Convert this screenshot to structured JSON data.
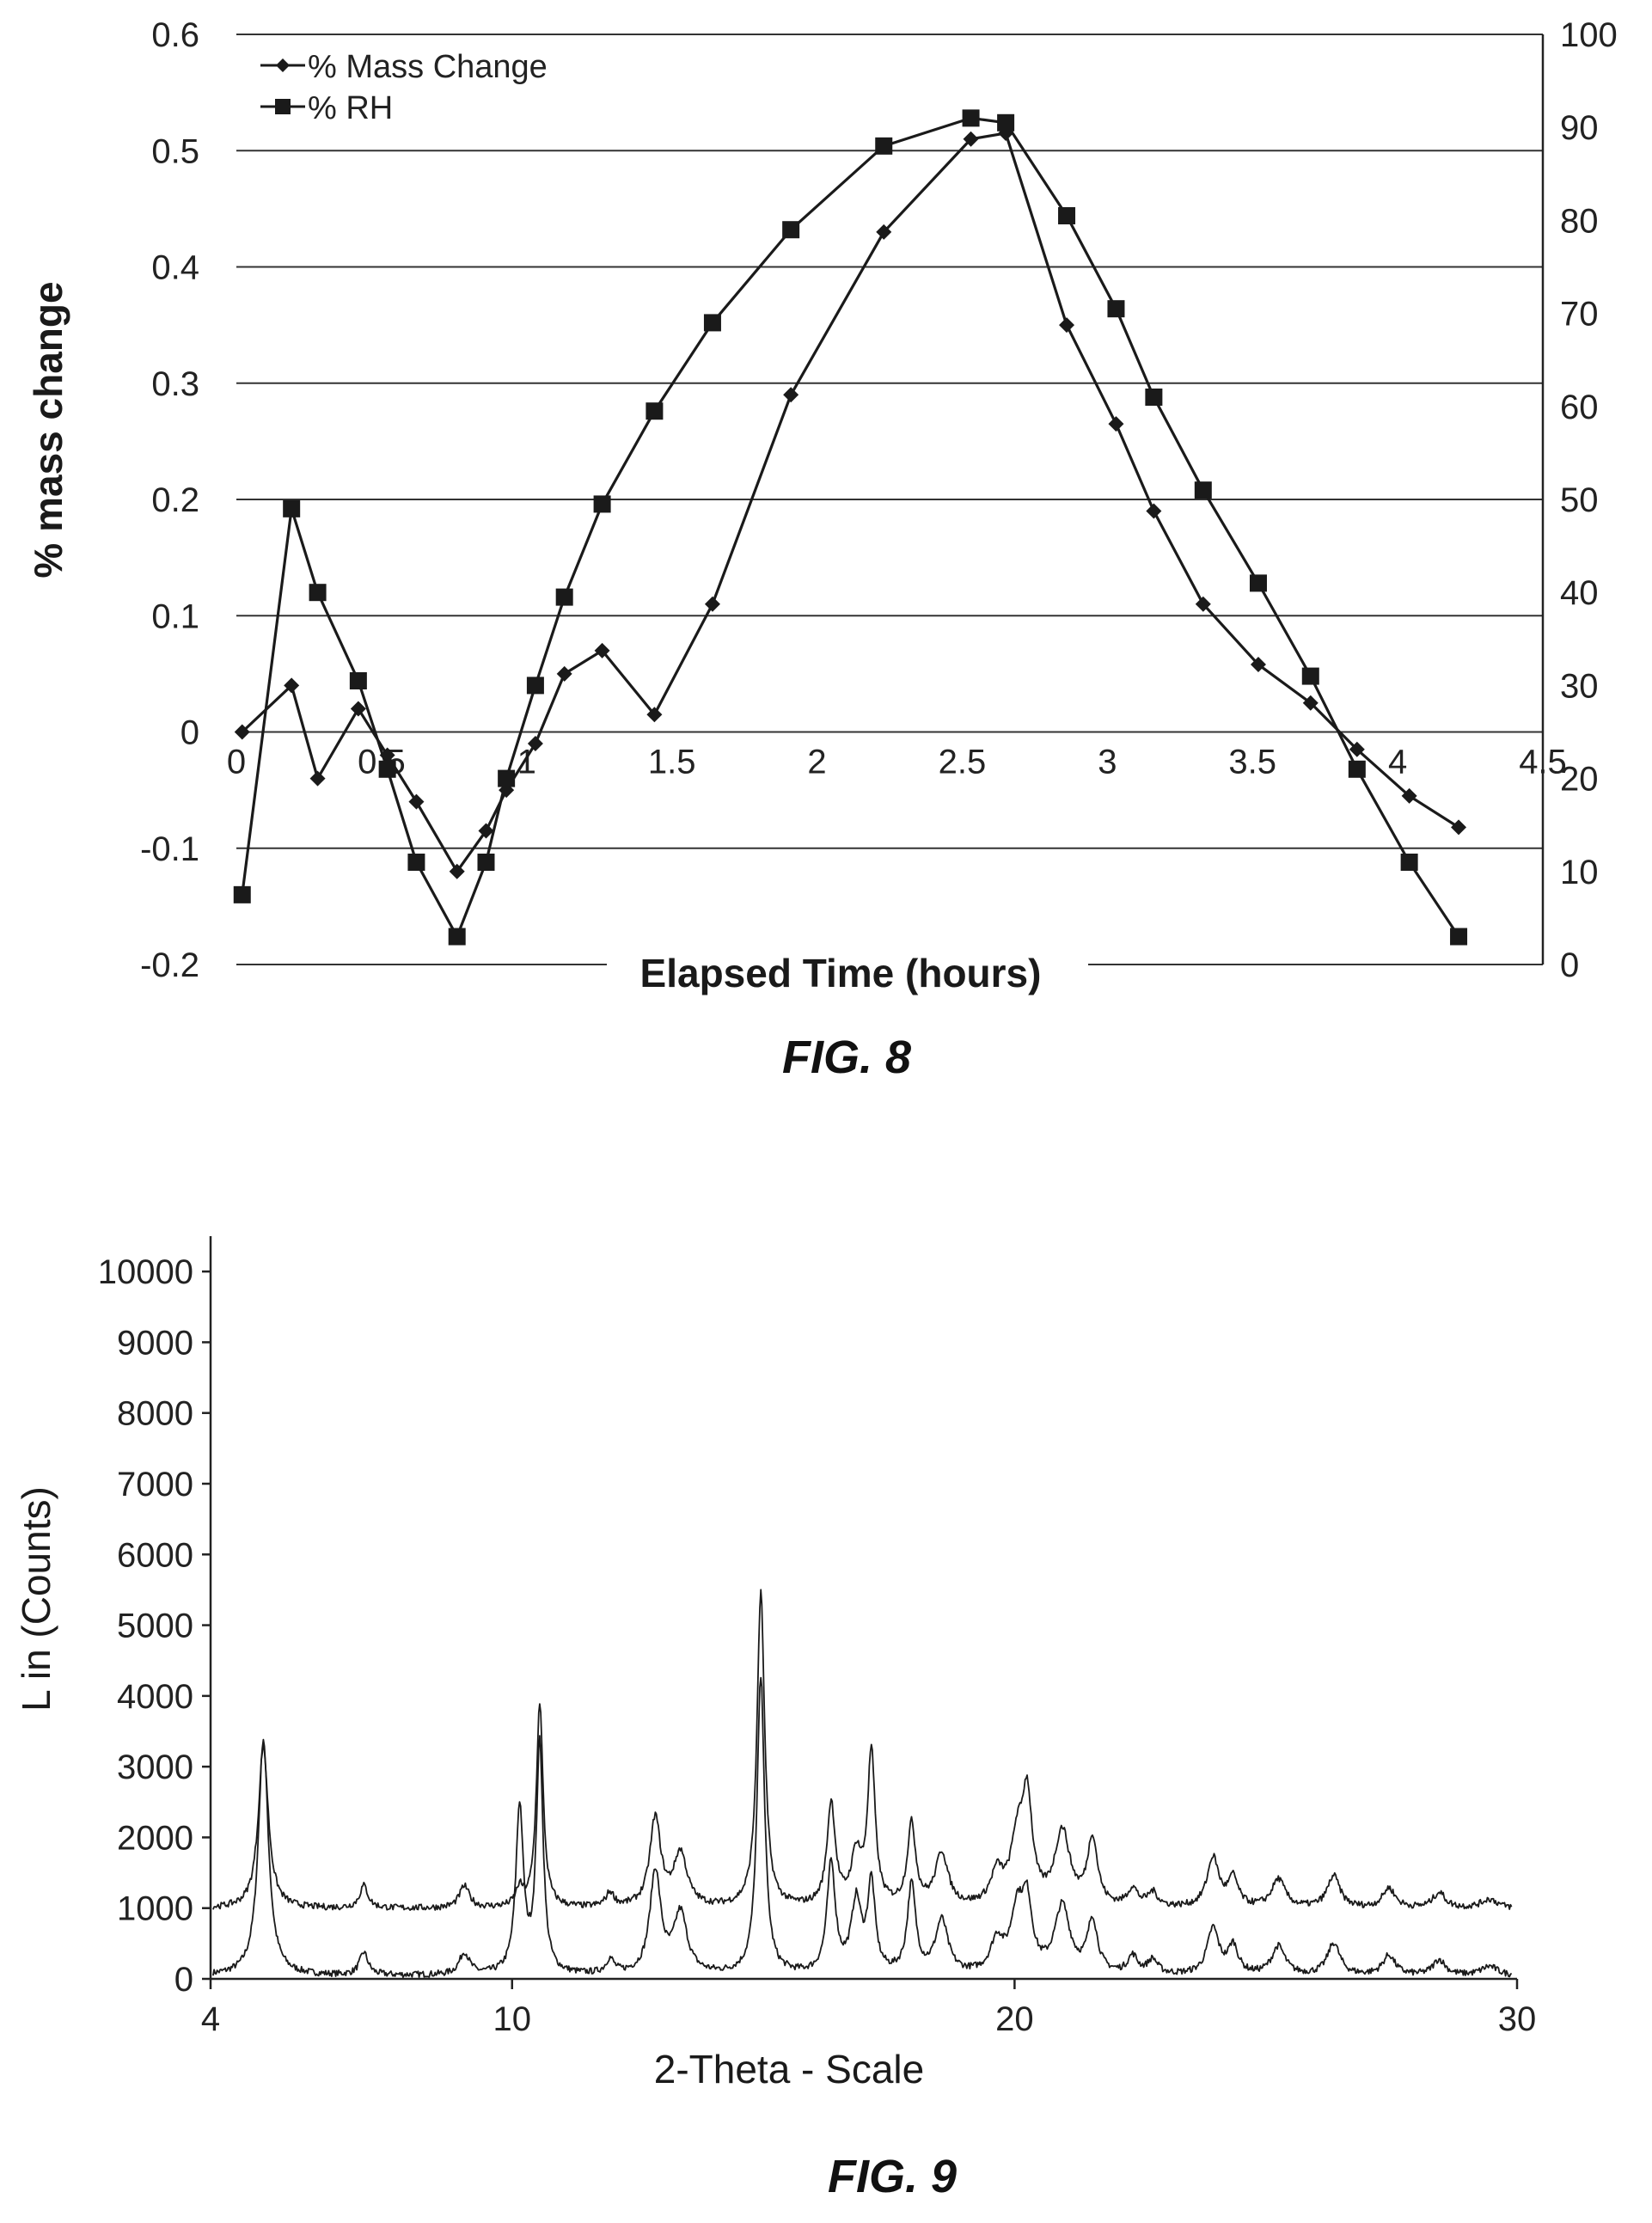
{
  "chart_data": [
    {
      "type": "line",
      "title": "",
      "xlabel": "Elapsed Time (hours)",
      "ylabel": "% mass change",
      "xlim": [
        0,
        4.5
      ],
      "ylim": [
        -0.2,
        0.6
      ],
      "y2lim": [
        0,
        100
      ],
      "x_ticks": [
        "0",
        "0.5",
        "1",
        "1.5",
        "2",
        "2.5",
        "3",
        "3.5",
        "4",
        "4.5"
      ],
      "y_ticks": [
        "0.6",
        "0.5",
        "0.4",
        "0.3",
        "0.2",
        "0.1",
        "0",
        "-0.1",
        "-0.2"
      ],
      "y2_ticks": [
        "100",
        "90",
        "80",
        "70",
        "60",
        "50",
        "40",
        "30",
        "20",
        "10",
        "0"
      ],
      "grid": true,
      "legend_position": "top-left",
      "series": [
        {
          "name": "% Mass Change",
          "axis": "left",
          "marker": "diamond",
          "x": [
            0.02,
            0.19,
            0.28,
            0.42,
            0.52,
            0.62,
            0.76,
            0.86,
            0.93,
            1.03,
            1.13,
            1.26,
            1.44,
            1.64,
            1.91,
            2.23,
            2.53,
            2.65,
            2.86,
            3.03,
            3.16,
            3.33,
            3.52,
            3.7,
            3.86,
            4.04,
            4.21
          ],
          "values": [
            0.0,
            0.04,
            -0.04,
            0.02,
            -0.02,
            -0.06,
            -0.12,
            -0.085,
            -0.05,
            -0.01,
            0.05,
            0.07,
            0.015,
            0.11,
            0.29,
            0.43,
            0.51,
            0.515,
            0.35,
            0.265,
            0.19,
            0.11,
            0.058,
            0.025,
            -0.015,
            -0.055,
            -0.082
          ]
        },
        {
          "name": "% RH",
          "axis": "right",
          "marker": "square",
          "x": [
            0.02,
            0.19,
            0.28,
            0.42,
            0.52,
            0.62,
            0.76,
            0.86,
            0.93,
            1.03,
            1.13,
            1.26,
            1.44,
            1.64,
            1.91,
            2.23,
            2.53,
            2.65,
            2.86,
            3.03,
            3.16,
            3.33,
            3.52,
            3.7,
            3.86,
            4.04,
            4.21
          ],
          "values": [
            7.5,
            49,
            40,
            30.5,
            21,
            11,
            3,
            11,
            20,
            30,
            39.5,
            49.5,
            59.5,
            69,
            79,
            88,
            91,
            90.5,
            80.5,
            70.5,
            61,
            51,
            41,
            31,
            21,
            11,
            3
          ]
        }
      ]
    },
    {
      "type": "line",
      "title": "",
      "xlabel": "2-Theta - Scale",
      "ylabel": "L in (Counts)",
      "xlim": [
        4,
        30
      ],
      "ylim": [
        0,
        10500
      ],
      "x_ticks": [
        "4",
        "10",
        "20",
        "30"
      ],
      "y_ticks": [
        "10000",
        "9000",
        "8000",
        "7000",
        "6000",
        "5000",
        "4000",
        "3000",
        "2000",
        "1000",
        "0"
      ],
      "grid": false,
      "offset_of_upper_trace": 1000,
      "peaks": [
        {
          "x": 5.05,
          "y": 3350,
          "w": 0.12
        },
        {
          "x": 7.05,
          "y": 320,
          "w": 0.1
        },
        {
          "x": 9.05,
          "y": 310,
          "w": 0.12
        },
        {
          "x": 10.15,
          "y": 2350,
          "w": 0.09
        },
        {
          "x": 10.55,
          "y": 3250,
          "w": 0.08
        },
        {
          "x": 11.95,
          "y": 200,
          "w": 0.1
        },
        {
          "x": 12.85,
          "y": 1450,
          "w": 0.13
        },
        {
          "x": 13.35,
          "y": 850,
          "w": 0.16
        },
        {
          "x": 14.95,
          "y": 4200,
          "w": 0.09
        },
        {
          "x": 16.35,
          "y": 1550,
          "w": 0.1
        },
        {
          "x": 16.85,
          "y": 1000,
          "w": 0.12
        },
        {
          "x": 17.15,
          "y": 1250,
          "w": 0.09
        },
        {
          "x": 17.95,
          "y": 1250,
          "w": 0.1
        },
        {
          "x": 18.55,
          "y": 750,
          "w": 0.15
        },
        {
          "x": 19.65,
          "y": 450,
          "w": 0.15
        },
        {
          "x": 20.05,
          "y": 850,
          "w": 0.15
        },
        {
          "x": 20.25,
          "y": 900,
          "w": 0.12
        },
        {
          "x": 20.95,
          "y": 950,
          "w": 0.18
        },
        {
          "x": 21.55,
          "y": 750,
          "w": 0.12
        },
        {
          "x": 22.35,
          "y": 250,
          "w": 0.12
        },
        {
          "x": 22.75,
          "y": 200,
          "w": 0.12
        },
        {
          "x": 23.95,
          "y": 650,
          "w": 0.14
        },
        {
          "x": 24.35,
          "y": 400,
          "w": 0.12
        },
        {
          "x": 25.25,
          "y": 400,
          "w": 0.16
        },
        {
          "x": 26.35,
          "y": 450,
          "w": 0.15
        },
        {
          "x": 27.45,
          "y": 280,
          "w": 0.15
        },
        {
          "x": 28.45,
          "y": 220,
          "w": 0.15
        },
        {
          "x": 29.45,
          "y": 130,
          "w": 0.2
        }
      ],
      "upper_trace_extra": [
        {
          "x": 5.05,
          "y": 2300
        },
        {
          "x": 10.55,
          "y": 2900
        },
        {
          "x": 14.95,
          "y": 4450
        },
        {
          "x": 16.35,
          "y": 1450
        },
        {
          "x": 17.15,
          "y": 2150
        },
        {
          "x": 17.95,
          "y": 1150
        },
        {
          "x": 20.25,
          "y": 1450
        },
        {
          "x": 20.95,
          "y": 1050
        },
        {
          "x": 21.55,
          "y": 950
        },
        {
          "x": 23.95,
          "y": 700
        },
        {
          "x": 12.85,
          "y": 1250
        },
        {
          "x": 10.15,
          "y": 250
        },
        {
          "x": 26.35,
          "y": 450
        },
        {
          "x": 16.85,
          "y": 700
        },
        {
          "x": 13.35,
          "y": 750
        }
      ]
    }
  ],
  "figure_labels": {
    "fig8": "FIG. 8",
    "fig9": "FIG. 9"
  }
}
